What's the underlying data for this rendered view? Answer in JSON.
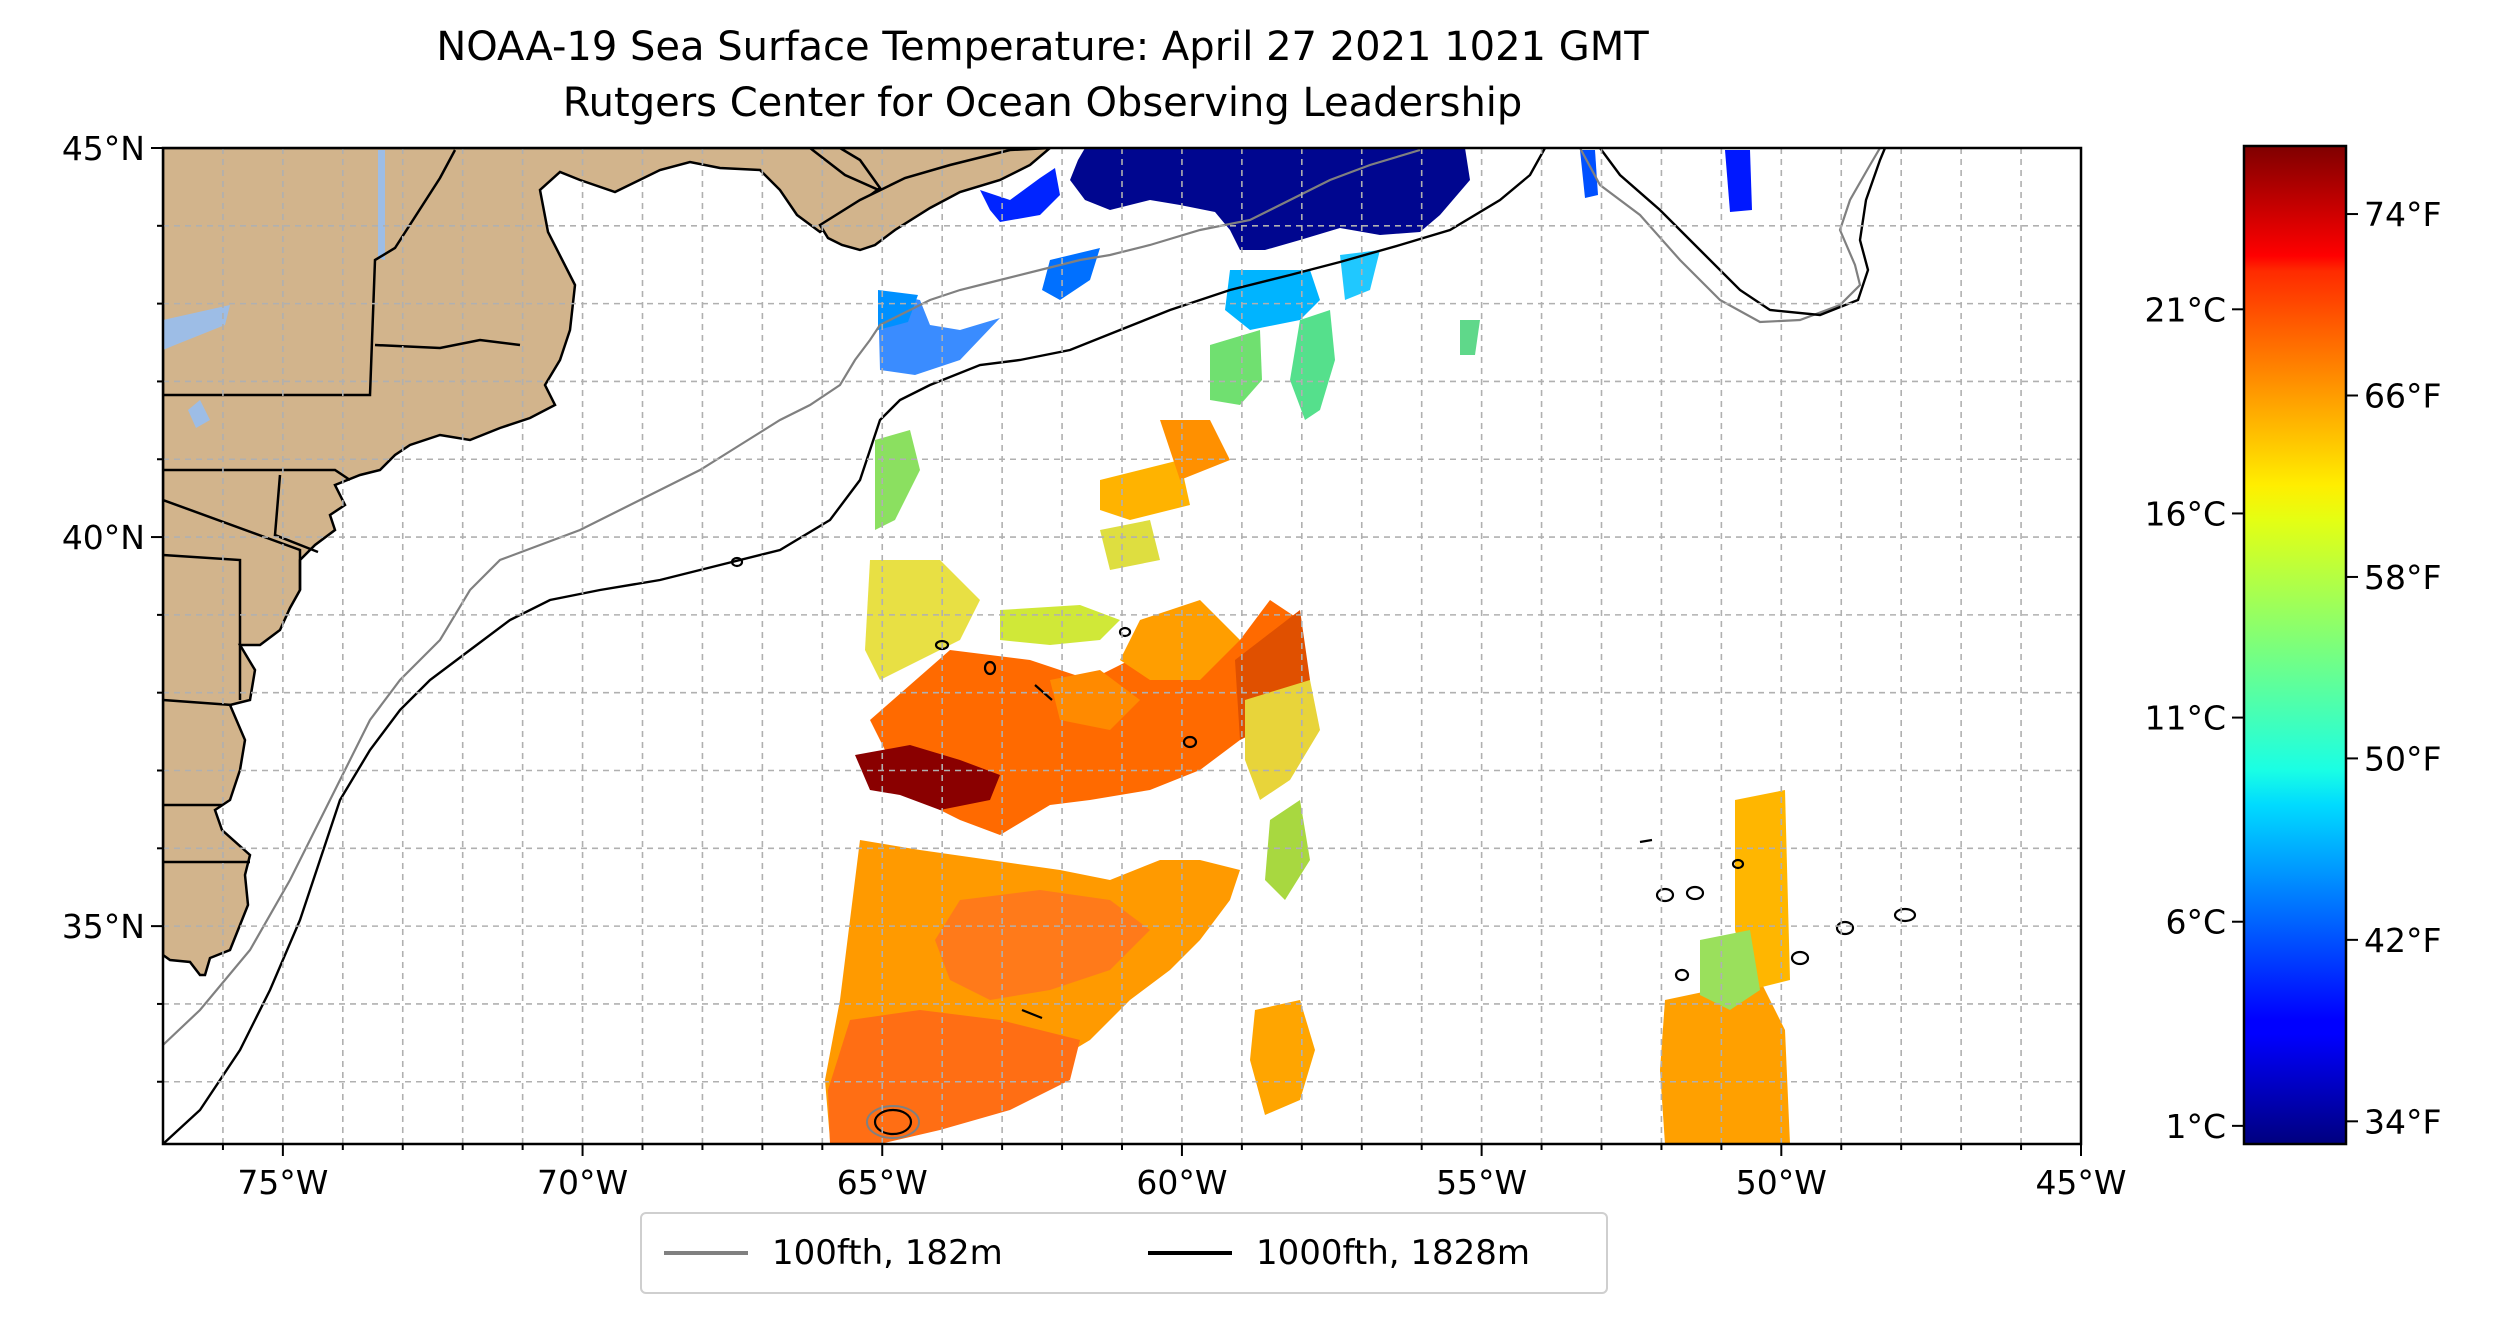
{
  "figure": {
    "title_line1": "NOAA-19 Sea Surface Temperature: April 27 2021 1021 GMT",
    "title_line2": "Rutgers Center for Ocean Observing Leadership"
  },
  "map": {
    "extent": {
      "lon_min": -77,
      "lon_max": -45,
      "lat_min": 32.2,
      "lat_max": 45
    },
    "x_tick_labels": [
      "75°W",
      "70°W",
      "65°W",
      "60°W",
      "55°W",
      "50°W",
      "45°W"
    ],
    "y_tick_labels": [
      "45°N",
      "40°N",
      "35°N"
    ],
    "gridlines": true,
    "land_color": "#d2b48c",
    "lake_color": "#9dbde6"
  },
  "legend": {
    "placement": "bottom-center",
    "items": [
      {
        "label": "100fth, 182m",
        "color": "#808080"
      },
      {
        "label": "1000fth, 1828m",
        "color": "#000000"
      }
    ]
  },
  "colorbar": {
    "colormap": "jet",
    "celsius_labels": [
      "21°C",
      "16°C",
      "11°C",
      "6°C",
      "1°C"
    ],
    "fahrenheit_labels": [
      "74°F",
      "66°F",
      "58°F",
      "50°F",
      "42°F",
      "34°F"
    ],
    "range_f": [
      33,
      77
    ]
  }
}
